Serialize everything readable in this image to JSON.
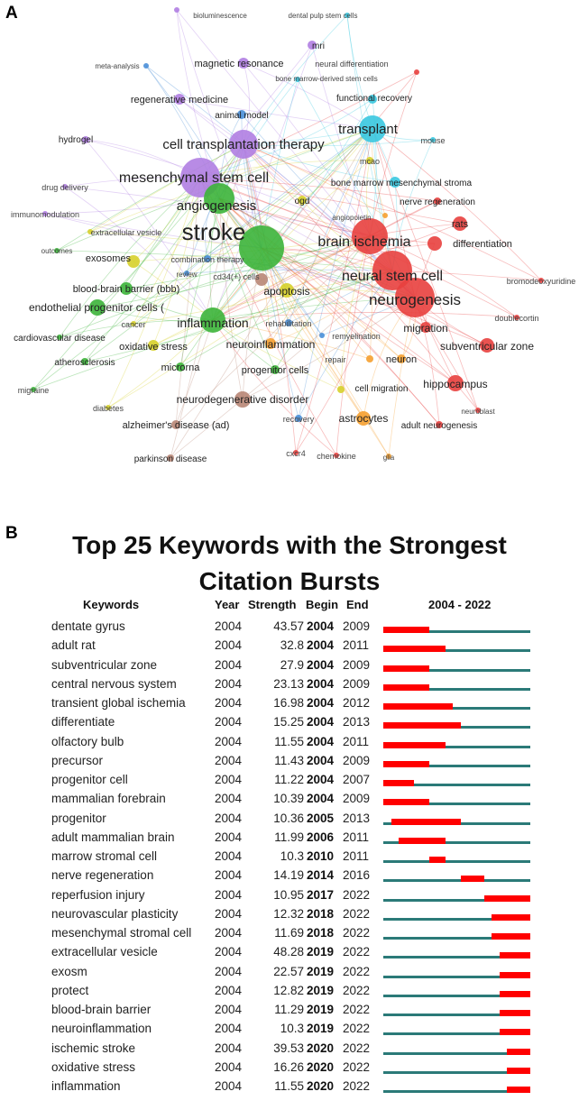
{
  "panel_a": {
    "label": "A",
    "network": {
      "cluster_colors": {
        "red": "#e8403e",
        "green": "#3cb43a",
        "purple": "#b07ee2",
        "cyan": "#38c8e0",
        "blue": "#4a8fd8",
        "yellow": "#d6d02a",
        "orange": "#f5a030",
        "brown": "#b88676"
      },
      "nodes": [
        {
          "label": "bioluminescence",
          "cluster": "purple"
        },
        {
          "label": "dental pulp stem cells",
          "cluster": "cyan"
        },
        {
          "label": "mri",
          "cluster": "purple"
        },
        {
          "label": "meta-analysis",
          "cluster": "blue"
        },
        {
          "label": "magnetic resonance",
          "cluster": "purple"
        },
        {
          "label": "neural differentiation",
          "cluster": "red"
        },
        {
          "label": "bone marrow-derived stem cells",
          "cluster": "cyan"
        },
        {
          "label": "regenerative medicine",
          "cluster": "purple"
        },
        {
          "label": "functional recovery",
          "cluster": "cyan"
        },
        {
          "label": "animal model",
          "cluster": "blue"
        },
        {
          "label": "transplant",
          "cluster": "cyan"
        },
        {
          "label": "hydrogel",
          "cluster": "purple"
        },
        {
          "label": "cell transplantation therapy",
          "cluster": "purple"
        },
        {
          "label": "mouse",
          "cluster": "cyan"
        },
        {
          "label": "mcao",
          "cluster": "yellow"
        },
        {
          "label": "mesenchymal stem cell",
          "cluster": "purple"
        },
        {
          "label": "bone marrow mesenchymal stroma",
          "cluster": "cyan"
        },
        {
          "label": "drug delivery",
          "cluster": "purple"
        },
        {
          "label": "angiogenesis",
          "cluster": "green"
        },
        {
          "label": "ogd",
          "cluster": "yellow"
        },
        {
          "label": "nerve regeneration",
          "cluster": "red"
        },
        {
          "label": "immunomodulation",
          "cluster": "purple"
        },
        {
          "label": "angiopoietin",
          "cluster": "orange"
        },
        {
          "label": "rats",
          "cluster": "red"
        },
        {
          "label": "stroke",
          "cluster": "green"
        },
        {
          "label": "extracellular vesicle",
          "cluster": "yellow"
        },
        {
          "label": "brain ischemia",
          "cluster": "red"
        },
        {
          "label": "differentiation",
          "cluster": "red"
        },
        {
          "label": "outcomes",
          "cluster": "green"
        },
        {
          "label": "exosomes",
          "cluster": "yellow"
        },
        {
          "label": "combination therapy",
          "cluster": "blue"
        },
        {
          "label": "review",
          "cluster": "blue"
        },
        {
          "label": "cd34(+) cells",
          "cluster": "brown"
        },
        {
          "label": "neural stem cell",
          "cluster": "red"
        },
        {
          "label": "bromodeoxyuridine",
          "cluster": "red"
        },
        {
          "label": "blood-brain barrier (bbb)",
          "cluster": "green"
        },
        {
          "label": "apoptosis",
          "cluster": "yellow"
        },
        {
          "label": "neurogenesis",
          "cluster": "red"
        },
        {
          "label": "endothelial progenitor cells (",
          "cluster": "green"
        },
        {
          "label": "inflammation",
          "cluster": "green"
        },
        {
          "label": "rehabilitation",
          "cluster": "blue"
        },
        {
          "label": "doublecortin",
          "cluster": "red"
        },
        {
          "label": "migration",
          "cluster": "red"
        },
        {
          "label": "cancer",
          "cluster": "yellow"
        },
        {
          "label": "cardiovascular disease",
          "cluster": "green"
        },
        {
          "label": "remyelination",
          "cluster": "blue"
        },
        {
          "label": "neuroinflammation",
          "cluster": "orange"
        },
        {
          "label": "oxidative stress",
          "cluster": "yellow"
        },
        {
          "label": "subventricular zone",
          "cluster": "red"
        },
        {
          "label": "atherosclerosis",
          "cluster": "green"
        },
        {
          "label": "repair",
          "cluster": "orange"
        },
        {
          "label": "neuron",
          "cluster": "orange"
        },
        {
          "label": "microrna",
          "cluster": "green"
        },
        {
          "label": "progenitor cells",
          "cluster": "green"
        },
        {
          "label": "hippocampus",
          "cluster": "red"
        },
        {
          "label": "migraine",
          "cluster": "green"
        },
        {
          "label": "cell migration",
          "cluster": "yellow"
        },
        {
          "label": "neurodegenerative disorder",
          "cluster": "brown"
        },
        {
          "label": "neuroblast",
          "cluster": "red"
        },
        {
          "label": "diabetes",
          "cluster": "yellow"
        },
        {
          "label": "astrocytes",
          "cluster": "orange"
        },
        {
          "label": "recovery",
          "cluster": "blue"
        },
        {
          "label": "alzheimer's disease (ad)",
          "cluster": "brown"
        },
        {
          "label": "adult neurogenesis",
          "cluster": "red"
        },
        {
          "label": "cxcr4",
          "cluster": "red"
        },
        {
          "label": "chemokine",
          "cluster": "red"
        },
        {
          "label": "glia",
          "cluster": "orange"
        },
        {
          "label": "parkinson disease",
          "cluster": "brown"
        }
      ]
    }
  },
  "panel_b": {
    "label": "B",
    "title_line1": "Top 25 Keywords with the Strongest",
    "title_line2": "Citation Bursts"
  },
  "chart_data": {
    "type": "table",
    "title": "Top 25 Keywords with the Strongest Citation Bursts",
    "columns": [
      "Keywords",
      "Year",
      "Strength",
      "Begin",
      "End",
      "2004 - 2022"
    ],
    "range": [
      2004,
      2022
    ],
    "colors": {
      "burst": "#ff0000",
      "baseline": "#2b7a78"
    },
    "rows": [
      {
        "keyword": "dentate gyrus",
        "year": 2004,
        "strength": "43.57",
        "begin": 2004,
        "end": 2009
      },
      {
        "keyword": "adult rat",
        "year": 2004,
        "strength": "32.8",
        "begin": 2004,
        "end": 2011
      },
      {
        "keyword": "subventricular zone",
        "year": 2004,
        "strength": "27.9",
        "begin": 2004,
        "end": 2009
      },
      {
        "keyword": "central nervous system",
        "year": 2004,
        "strength": "23.13",
        "begin": 2004,
        "end": 2009
      },
      {
        "keyword": "transient global ischemia",
        "year": 2004,
        "strength": "16.98",
        "begin": 2004,
        "end": 2012
      },
      {
        "keyword": "differentiate",
        "year": 2004,
        "strength": "15.25",
        "begin": 2004,
        "end": 2013
      },
      {
        "keyword": "olfactory bulb",
        "year": 2004,
        "strength": "11.55",
        "begin": 2004,
        "end": 2011
      },
      {
        "keyword": "precursor",
        "year": 2004,
        "strength": "11.43",
        "begin": 2004,
        "end": 2009
      },
      {
        "keyword": "progenitor cell",
        "year": 2004,
        "strength": "11.22",
        "begin": 2004,
        "end": 2007
      },
      {
        "keyword": "mammalian forebrain",
        "year": 2004,
        "strength": "10.39",
        "begin": 2004,
        "end": 2009
      },
      {
        "keyword": "progenitor",
        "year": 2004,
        "strength": "10.36",
        "begin": 2005,
        "end": 2013
      },
      {
        "keyword": "adult mammalian brain",
        "year": 2004,
        "strength": "11.99",
        "begin": 2006,
        "end": 2011
      },
      {
        "keyword": "marrow stromal cell",
        "year": 2004,
        "strength": "10.3",
        "begin": 2010,
        "end": 2011
      },
      {
        "keyword": "nerve regeneration",
        "year": 2004,
        "strength": "14.19",
        "begin": 2014,
        "end": 2016
      },
      {
        "keyword": "reperfusion injury",
        "year": 2004,
        "strength": "10.95",
        "begin": 2017,
        "end": 2022
      },
      {
        "keyword": "neurovascular plasticity",
        "year": 2004,
        "strength": "12.32",
        "begin": 2018,
        "end": 2022
      },
      {
        "keyword": "mesenchymal stromal cell",
        "year": 2004,
        "strength": "11.69",
        "begin": 2018,
        "end": 2022
      },
      {
        "keyword": "extracellular vesicle",
        "year": 2004,
        "strength": "48.28",
        "begin": 2019,
        "end": 2022
      },
      {
        "keyword": "exosm",
        "year": 2004,
        "strength": "22.57",
        "begin": 2019,
        "end": 2022
      },
      {
        "keyword": "protect",
        "year": 2004,
        "strength": "12.82",
        "begin": 2019,
        "end": 2022
      },
      {
        "keyword": "blood-brain barrier",
        "year": 2004,
        "strength": "11.29",
        "begin": 2019,
        "end": 2022
      },
      {
        "keyword": "neuroinflammation",
        "year": 2004,
        "strength": "10.3",
        "begin": 2019,
        "end": 2022
      },
      {
        "keyword": "ischemic stroke",
        "year": 2004,
        "strength": "39.53",
        "begin": 2020,
        "end": 2022
      },
      {
        "keyword": "oxidative stress",
        "year": 2004,
        "strength": "16.26",
        "begin": 2020,
        "end": 2022
      },
      {
        "keyword": "inflammation",
        "year": 2004,
        "strength": "11.55",
        "begin": 2020,
        "end": 2022
      }
    ]
  }
}
